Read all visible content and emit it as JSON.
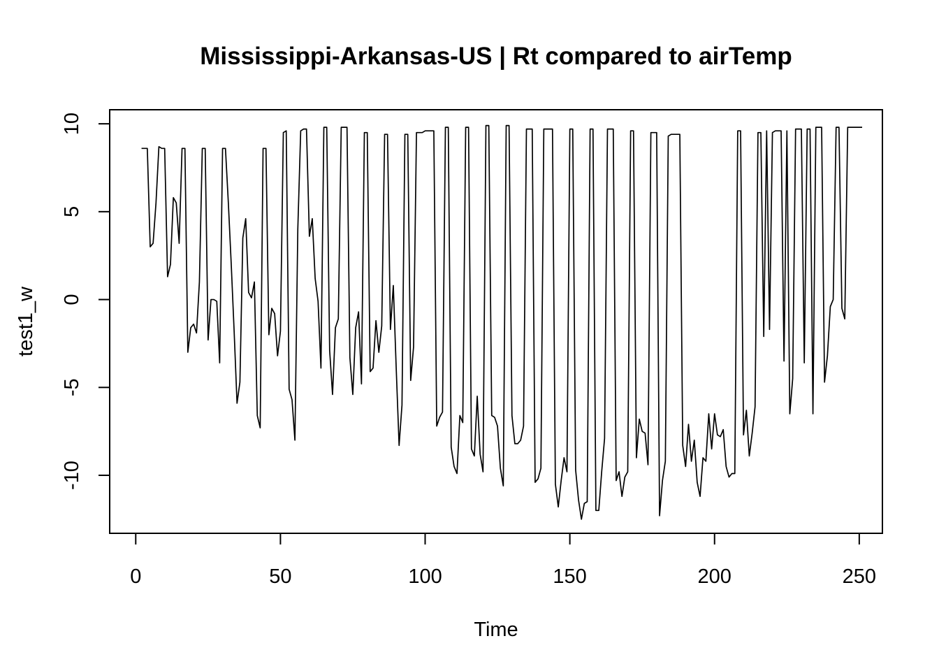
{
  "chart_data": {
    "type": "line",
    "title": "Mississippi-Arkansas-US | Rt compared to airTemp",
    "xlabel": "Time",
    "ylabel": "test1_w",
    "xlim": [
      -9,
      258
    ],
    "ylim": [
      -13.3,
      10.8
    ],
    "xticks": [
      0,
      50,
      100,
      150,
      200,
      250
    ],
    "yticks": [
      -10,
      -5,
      0,
      5,
      10
    ],
    "grid": false,
    "line_color": "#000000",
    "series": [
      {
        "x0": 2,
        "values": [
          8.6,
          8.6,
          8.6,
          3.0,
          3.2,
          5.5,
          8.7,
          8.6,
          8.6,
          1.3,
          2.0,
          5.8,
          5.5,
          3.2,
          8.6,
          8.6,
          -3.0,
          -1.6,
          -1.4,
          -1.9,
          1.0,
          8.6,
          8.6,
          -2.3,
          0.0,
          0.0,
          -0.1,
          -3.6,
          8.6,
          8.6,
          5.5,
          2.0,
          -1.8,
          -5.9,
          -4.7,
          3.5,
          4.6,
          0.4,
          0.1,
          1.0,
          -6.6,
          -7.3,
          8.6,
          8.6,
          -2.0,
          -0.5,
          -0.8,
          -3.2,
          -1.8,
          9.5,
          9.6,
          -5.1,
          -5.7,
          -8.0,
          4.0,
          9.6,
          9.7,
          9.7,
          3.6,
          4.6,
          1.2,
          -0.1,
          -3.9,
          9.8,
          9.8,
          -2.9,
          -5.4,
          -1.6,
          -1.1,
          9.8,
          9.8,
          9.8,
          -3.3,
          -5.4,
          -1.6,
          -0.7,
          -4.8,
          9.5,
          9.5,
          -4.1,
          -3.9,
          -1.2,
          -3.0,
          -1.5,
          9.4,
          9.4,
          -1.7,
          0.8,
          -3.9,
          -8.3,
          -6.0,
          9.4,
          9.4,
          -4.6,
          -2.7,
          9.5,
          9.5,
          9.5,
          9.6,
          9.6,
          9.6,
          9.6,
          -7.2,
          -6.7,
          -6.4,
          9.8,
          9.8,
          -8.4,
          -9.5,
          -9.9,
          -6.6,
          -7.0,
          9.8,
          9.8,
          -8.5,
          -8.9,
          -5.5,
          -8.8,
          -9.8,
          9.9,
          9.9,
          -6.6,
          -6.7,
          -7.2,
          -9.6,
          -10.6,
          9.9,
          9.9,
          -6.6,
          -8.2,
          -8.2,
          -8.0,
          -7.2,
          9.7,
          9.7,
          9.7,
          -10.4,
          -10.2,
          -9.6,
          9.7,
          9.7,
          9.7,
          9.7,
          -10.5,
          -11.8,
          -10.3,
          -9.0,
          -9.8,
          9.7,
          9.7,
          -9.7,
          -11.4,
          -12.5,
          -11.6,
          -11.5,
          9.7,
          9.7,
          -12.0,
          -12.0,
          -9.8,
          -7.9,
          9.7,
          9.7,
          9.7,
          -10.3,
          -9.8,
          -11.2,
          -10.1,
          -9.8,
          9.6,
          9.6,
          -9.0,
          -6.8,
          -7.5,
          -7.6,
          -9.4,
          9.5,
          9.5,
          9.5,
          -12.3,
          -10.3,
          -9.2,
          9.3,
          9.4,
          9.4,
          9.4,
          9.4,
          -8.3,
          -9.5,
          -7.1,
          -9.2,
          -8.0,
          -10.4,
          -11.2,
          -9.0,
          -9.2,
          -6.5,
          -8.5,
          -6.5,
          -7.7,
          -7.8,
          -7.4,
          -9.5,
          -10.1,
          -9.9,
          -9.9,
          9.6,
          9.6,
          -7.7,
          -6.3,
          -8.9,
          -7.6,
          -6.1,
          9.5,
          9.5,
          -2.1,
          9.6,
          -1.7,
          9.5,
          9.6,
          9.6,
          9.6,
          -3.5,
          9.6,
          -6.5,
          -4.5,
          9.7,
          9.7,
          9.7,
          -3.6,
          9.7,
          9.7,
          -6.5,
          9.8,
          9.8,
          9.8,
          -4.7,
          -3.2,
          -0.4,
          0.0,
          9.8,
          9.8,
          -0.5,
          -1.1,
          9.8,
          9.8,
          9.8,
          9.8,
          9.8,
          9.8
        ]
      }
    ]
  }
}
